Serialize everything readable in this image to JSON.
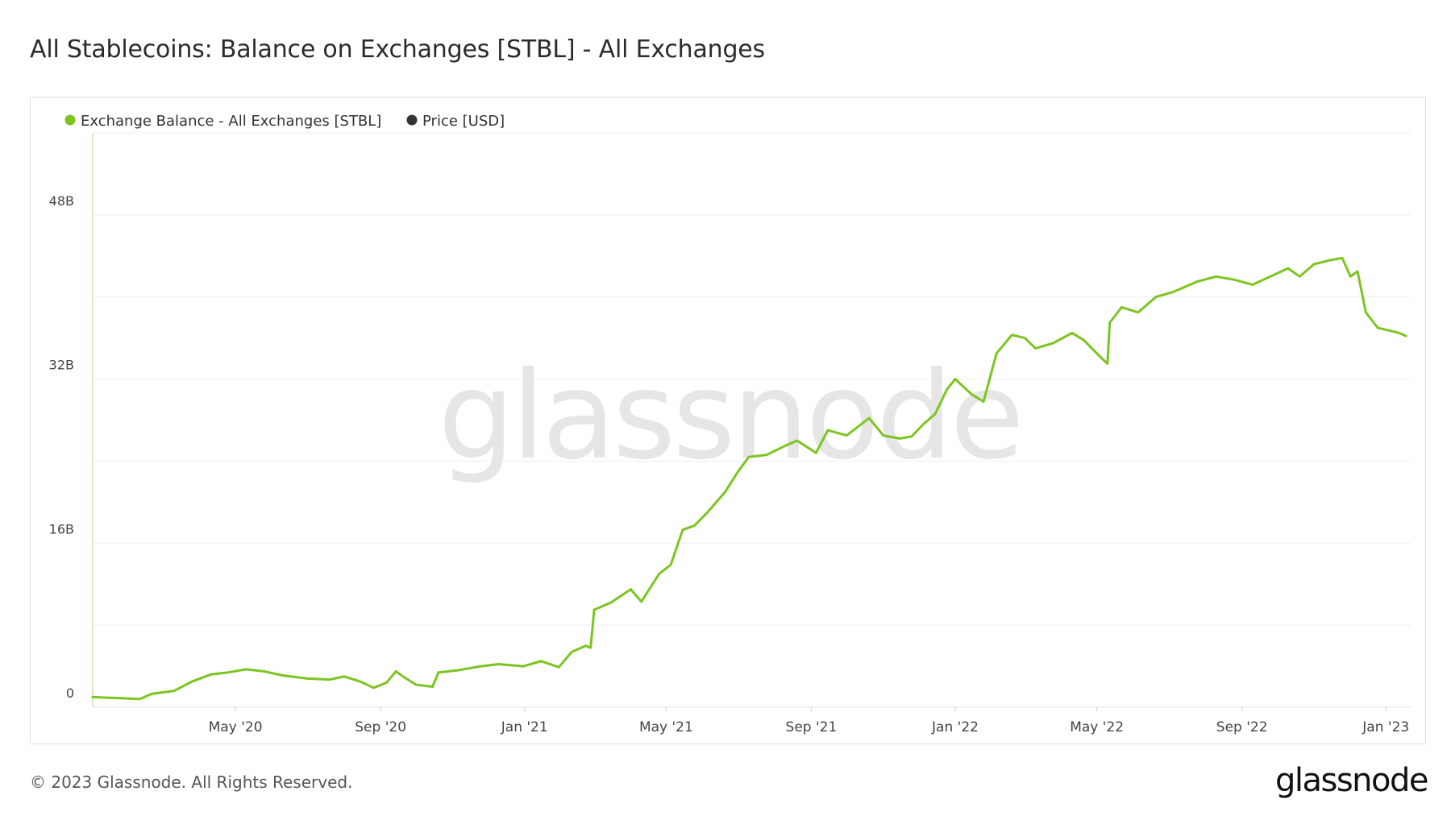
{
  "title": "All Stablecoins: Balance on Exchanges [STBL] - All Exchanges",
  "footer": {
    "copyright": "© 2023 Glassnode. All Rights Reserved.",
    "logo_text": "glassnode"
  },
  "watermark": "glassnode",
  "colors": {
    "series_balance": "#7cc521",
    "series_price": "#333333",
    "grid": "#eeeeee",
    "axis_text": "#444444",
    "watermark": "#e6e6e6"
  },
  "chart_data": {
    "type": "line",
    "title": "All Stablecoins: Balance on Exchanges [STBL] - All Exchanges",
    "legend_position": "top-left",
    "grid": true,
    "series": [
      {
        "name": "Exchange Balance - All Exchanges [STBL]",
        "color": "#7cc521",
        "points": [
          [
            "2020-01-01",
            1.0
          ],
          [
            "2020-01-20",
            0.9
          ],
          [
            "2020-02-10",
            0.8
          ],
          [
            "2020-02-20",
            1.3
          ],
          [
            "2020-03-10",
            1.6
          ],
          [
            "2020-03-25",
            2.5
          ],
          [
            "2020-04-10",
            3.2
          ],
          [
            "2020-04-25",
            3.4
          ],
          [
            "2020-05-10",
            3.7
          ],
          [
            "2020-05-25",
            3.5
          ],
          [
            "2020-06-10",
            3.1
          ],
          [
            "2020-07-01",
            2.8
          ],
          [
            "2020-07-20",
            2.7
          ],
          [
            "2020-08-01",
            3.0
          ],
          [
            "2020-08-15",
            2.5
          ],
          [
            "2020-08-26",
            1.9
          ],
          [
            "2020-09-06",
            2.4
          ],
          [
            "2020-09-14",
            3.5
          ],
          [
            "2020-09-20",
            3.0
          ],
          [
            "2020-10-01",
            2.2
          ],
          [
            "2020-10-15",
            2.0
          ],
          [
            "2020-10-20",
            3.4
          ],
          [
            "2020-11-05",
            3.6
          ],
          [
            "2020-11-25",
            4.0
          ],
          [
            "2020-12-10",
            4.2
          ],
          [
            "2020-12-31",
            4.0
          ],
          [
            "2021-01-15",
            4.5
          ],
          [
            "2021-01-30",
            3.9
          ],
          [
            "2021-02-10",
            5.4
          ],
          [
            "2021-02-22",
            6.0
          ],
          [
            "2021-02-26",
            5.8
          ],
          [
            "2021-03-01",
            9.5
          ],
          [
            "2021-03-15",
            10.2
          ],
          [
            "2021-04-01",
            11.5
          ],
          [
            "2021-04-10",
            10.3
          ],
          [
            "2021-04-25",
            13.0
          ],
          [
            "2021-05-05",
            13.9
          ],
          [
            "2021-05-15",
            17.3
          ],
          [
            "2021-05-25",
            17.7
          ],
          [
            "2021-06-05",
            19.0
          ],
          [
            "2021-06-20",
            21.0
          ],
          [
            "2021-07-01",
            23.0
          ],
          [
            "2021-07-10",
            24.4
          ],
          [
            "2021-07-25",
            24.6
          ],
          [
            "2021-08-10",
            25.5
          ],
          [
            "2021-08-20",
            26.0
          ],
          [
            "2021-09-05",
            24.8
          ],
          [
            "2021-09-15",
            27.0
          ],
          [
            "2021-10-01",
            26.5
          ],
          [
            "2021-10-10",
            27.3
          ],
          [
            "2021-10-20",
            28.2
          ],
          [
            "2021-11-01",
            26.5
          ],
          [
            "2021-11-15",
            26.2
          ],
          [
            "2021-11-25",
            26.4
          ],
          [
            "2021-12-05",
            27.6
          ],
          [
            "2021-12-15",
            28.6
          ],
          [
            "2021-12-25",
            31.0
          ],
          [
            "2022-01-01",
            32.0
          ],
          [
            "2022-01-15",
            30.5
          ],
          [
            "2022-01-25",
            29.8
          ],
          [
            "2022-02-05",
            34.5
          ],
          [
            "2022-02-18",
            36.3
          ],
          [
            "2022-03-01",
            36.0
          ],
          [
            "2022-03-10",
            35.0
          ],
          [
            "2022-03-25",
            35.5
          ],
          [
            "2022-04-10",
            36.5
          ],
          [
            "2022-04-20",
            35.8
          ],
          [
            "2022-05-01",
            34.5
          ],
          [
            "2022-05-10",
            33.5
          ],
          [
            "2022-05-12",
            37.5
          ],
          [
            "2022-05-22",
            39.0
          ],
          [
            "2022-06-05",
            38.5
          ],
          [
            "2022-06-20",
            40.0
          ],
          [
            "2022-07-05",
            40.5
          ],
          [
            "2022-07-25",
            41.5
          ],
          [
            "2022-08-10",
            42.0
          ],
          [
            "2022-08-25",
            41.7
          ],
          [
            "2022-09-10",
            41.2
          ],
          [
            "2022-09-25",
            42.0
          ],
          [
            "2022-10-10",
            42.8
          ],
          [
            "2022-10-20",
            42.0
          ],
          [
            "2022-11-01",
            43.2
          ],
          [
            "2022-11-15",
            43.6
          ],
          [
            "2022-11-25",
            43.8
          ],
          [
            "2022-12-02",
            42.0
          ],
          [
            "2022-12-08",
            42.5
          ],
          [
            "2022-12-15",
            38.5
          ],
          [
            "2022-12-25",
            37.0
          ],
          [
            "2023-01-05",
            36.7
          ],
          [
            "2023-01-12",
            36.5
          ],
          [
            "2023-01-18",
            36.2
          ]
        ]
      },
      {
        "name": "Price [USD]",
        "color": "#333333",
        "points": []
      }
    ],
    "xlabel": "",
    "ylabel": "",
    "ylim": [
      0,
      56
    ],
    "y_ticks": [
      {
        "value": 0,
        "label": "0"
      },
      {
        "value": 16,
        "label": "16B"
      },
      {
        "value": 32,
        "label": "32B"
      },
      {
        "value": 48,
        "label": "48B"
      }
    ],
    "x_range": [
      "2020-01-01",
      "2023-01-22"
    ],
    "x_ticks": [
      {
        "date": "2020-05-01",
        "label": "May '20"
      },
      {
        "date": "2020-09-01",
        "label": "Sep '20"
      },
      {
        "date": "2021-01-01",
        "label": "Jan '21"
      },
      {
        "date": "2021-05-01",
        "label": "May '21"
      },
      {
        "date": "2021-09-01",
        "label": "Sep '21"
      },
      {
        "date": "2022-01-01",
        "label": "Jan '22"
      },
      {
        "date": "2022-05-01",
        "label": "May '22"
      },
      {
        "date": "2022-09-01",
        "label": "Sep '22"
      },
      {
        "date": "2023-01-01",
        "label": "Jan '23"
      }
    ]
  }
}
